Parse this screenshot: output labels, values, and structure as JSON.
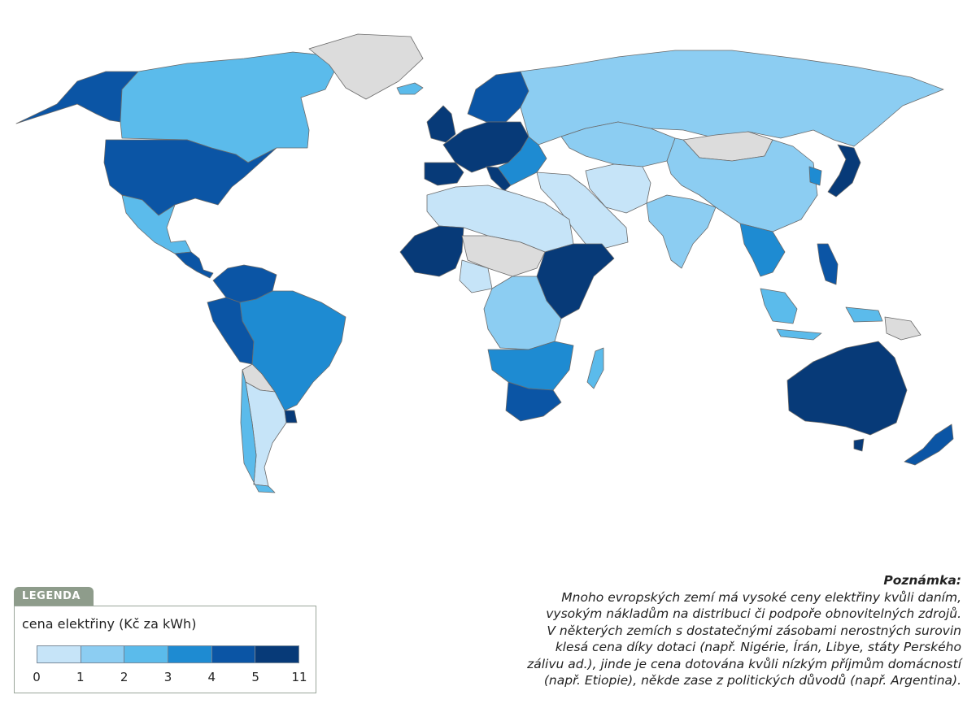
{
  "legend": {
    "tab_label": "LEGENDA",
    "title": "cena elektřiny (Kč za kWh)",
    "bins": [
      {
        "from": 0,
        "to": 1,
        "color": "#c6e4f8"
      },
      {
        "from": 1,
        "to": 2,
        "color": "#8ccdf2"
      },
      {
        "from": 2,
        "to": 3,
        "color": "#5bbbeb"
      },
      {
        "from": 3,
        "to": 4,
        "color": "#1e8bd2"
      },
      {
        "from": 4,
        "to": 5,
        "color": "#0b55a5"
      },
      {
        "from": 5,
        "to": 11,
        "color": "#073a78"
      }
    ],
    "tick_labels": [
      "0",
      "1",
      "2",
      "3",
      "4",
      "5",
      "11"
    ]
  },
  "note": {
    "title": "Poznámka:",
    "lines": [
      "Mnoho evropských zemí má vysoké ceny elektřiny kvůli daním,",
      "vysokým nákladům na distribuci či podpoře obnovitelných zdrojů.",
      "V některých zemích s dostatečnými zásobami nerostných surovin",
      "klesá cena díky dotaci (např. Nigérie, Írán, Libye, státy Perského",
      "zálivu ad.), jinde je cena dotována kvůli nízkým příjmům domácností",
      "(např. Etiopie), někde zase z politických důvodů (např. Argentina)."
    ]
  },
  "map": {
    "no_data_color": "#dcdcdc",
    "regions": [
      {
        "name": "alaska",
        "bin": 4
      },
      {
        "name": "canada",
        "bin": 2
      },
      {
        "name": "greenland",
        "bin": -1
      },
      {
        "name": "usa",
        "bin": 4
      },
      {
        "name": "mexico",
        "bin": 2
      },
      {
        "name": "central-america",
        "bin": 4
      },
      {
        "name": "colombia-venezuela",
        "bin": 4
      },
      {
        "name": "brazil",
        "bin": 3
      },
      {
        "name": "peru-ecuador",
        "bin": 4
      },
      {
        "name": "bolivia",
        "bin": -1
      },
      {
        "name": "argentina",
        "bin": 0
      },
      {
        "name": "uruguay",
        "bin": 5
      },
      {
        "name": "chile",
        "bin": 2
      },
      {
        "name": "iceland",
        "bin": 2
      },
      {
        "name": "uk-ireland",
        "bin": 5
      },
      {
        "name": "scandinavia",
        "bin": 4
      },
      {
        "name": "western-europe",
        "bin": 5
      },
      {
        "name": "iberia",
        "bin": 5
      },
      {
        "name": "italy",
        "bin": 5
      },
      {
        "name": "eastern-europe",
        "bin": 3
      },
      {
        "name": "russia",
        "bin": 1
      },
      {
        "name": "kazakhstan",
        "bin": 1
      },
      {
        "name": "mongolia",
        "bin": -1
      },
      {
        "name": "china",
        "bin": 1
      },
      {
        "name": "middle-east",
        "bin": 0
      },
      {
        "name": "iran",
        "bin": 0
      },
      {
        "name": "india",
        "bin": 1
      },
      {
        "name": "southeast-asia",
        "bin": 3
      },
      {
        "name": "japan",
        "bin": 5
      },
      {
        "name": "korea",
        "bin": 3
      },
      {
        "name": "philippines",
        "bin": 4
      },
      {
        "name": "indonesia",
        "bin": 2
      },
      {
        "name": "new-guinea",
        "bin": -1
      },
      {
        "name": "north-africa",
        "bin": 0
      },
      {
        "name": "west-africa",
        "bin": 5
      },
      {
        "name": "nigeria",
        "bin": 0
      },
      {
        "name": "sahel",
        "bin": -1
      },
      {
        "name": "east-africa",
        "bin": 5
      },
      {
        "name": "central-africa",
        "bin": 1
      },
      {
        "name": "southern-africa",
        "bin": 3
      },
      {
        "name": "south-africa",
        "bin": 4
      },
      {
        "name": "madagascar",
        "bin": 2
      },
      {
        "name": "australia",
        "bin": 5
      },
      {
        "name": "tasmania",
        "bin": 5
      },
      {
        "name": "new-zealand",
        "bin": 4
      }
    ]
  }
}
